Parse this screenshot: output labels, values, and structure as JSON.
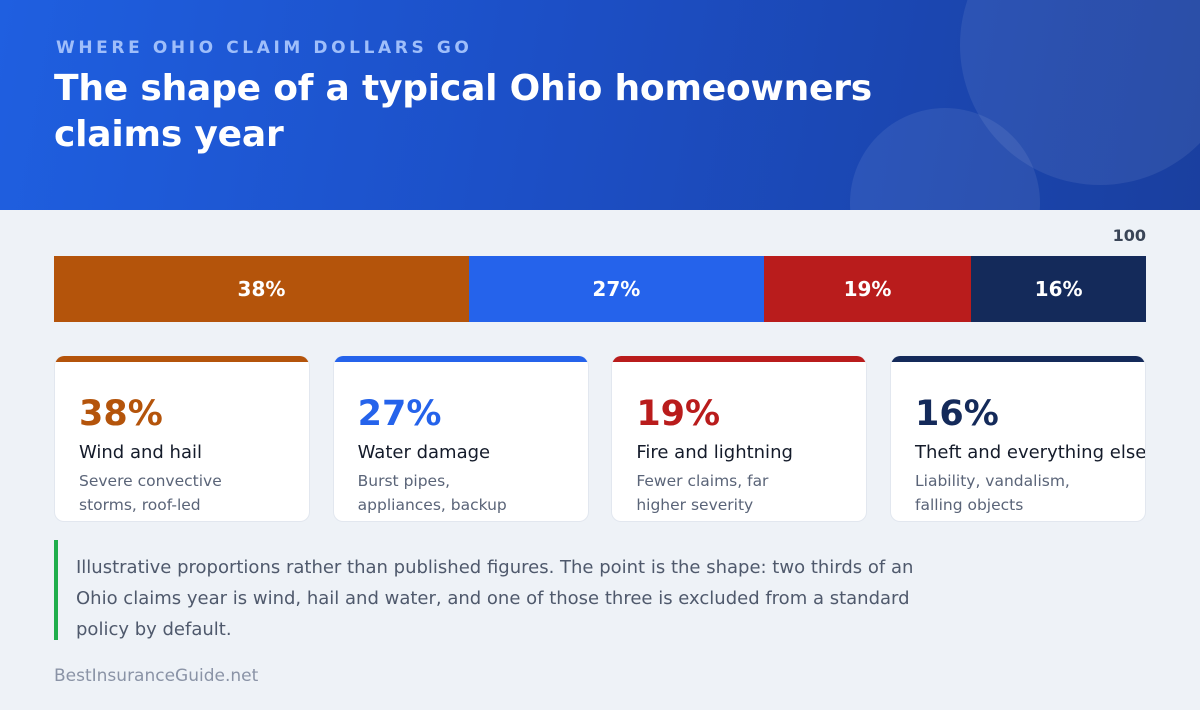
{
  "header": {
    "eyebrow": "WHERE OHIO CLAIM DOLLARS GO",
    "title": "The shape of a typical Ohio homeowners claims year"
  },
  "chart_data": {
    "type": "bar",
    "orientation": "horizontal-stacked",
    "total_label": "100",
    "categories": [
      "Wind and hail",
      "Water damage",
      "Fire and lightning",
      "Theft and everything else"
    ],
    "values": [
      38,
      27,
      19,
      16
    ],
    "labels": [
      "38%",
      "27%",
      "19%",
      "16%"
    ],
    "colors": [
      "#b4540b",
      "#2563eb",
      "#b91c1c",
      "#142a5a"
    ],
    "descriptions": [
      "Severe convective storms, roof-led",
      "Burst pipes, appliances, backup",
      "Fewer claims, far higher severity",
      "Liability, vandalism, falling objects"
    ]
  },
  "note": "Illustrative proportions rather than published figures. The point is the shape: two thirds of an Ohio claims year is wind, hail and water, and one of those three is excluded from a standard policy by default.",
  "footer": "BestInsuranceGuide.net"
}
